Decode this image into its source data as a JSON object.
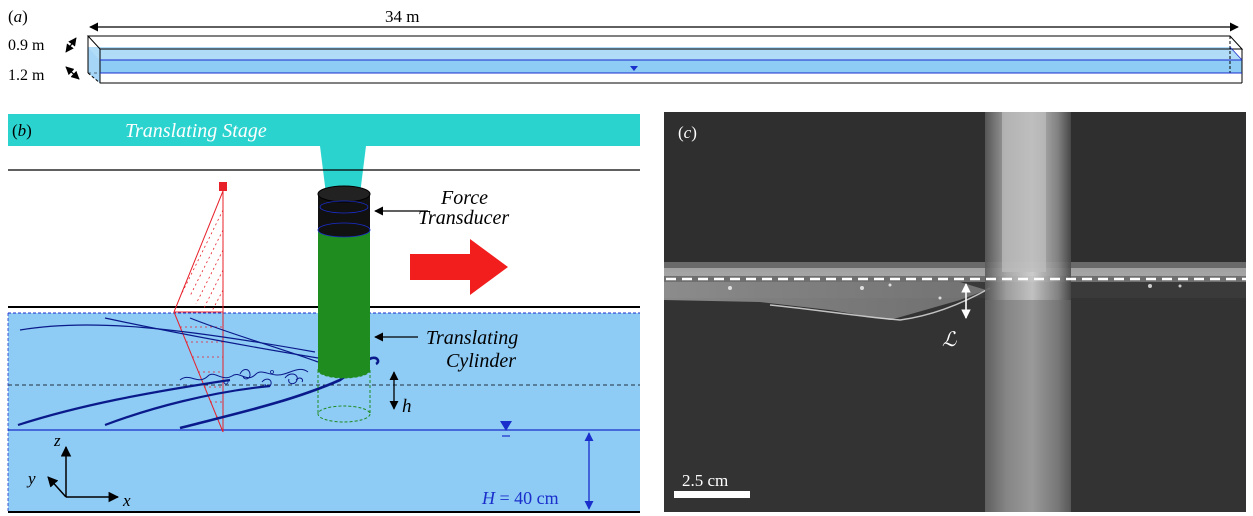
{
  "panel_a": {
    "label_prefix": "(",
    "label_letter": "a",
    "label_suffix": ")",
    "length": "34 m",
    "height_top": "0.9 m",
    "height_bottom": "1.2 m"
  },
  "panel_b": {
    "label_prefix": "(",
    "label_letter": "b",
    "label_suffix": ")",
    "stage": "Translating Stage",
    "force_1": "Force",
    "force_2": "Transducer",
    "cyl_1": "Translating",
    "cyl_2": "Cylinder",
    "h": "h",
    "H_sym": "H",
    "H_val": " = 40 cm",
    "axis_x": "x",
    "axis_y": "y",
    "axis_z": "z"
  },
  "panel_c": {
    "label_prefix": "(",
    "label_letter": "c",
    "label_suffix": ")",
    "L": "ℒ",
    "scale": "2.5 cm"
  },
  "colors": {
    "water": "#8ecbf5",
    "water_dark": "#1a2ecc",
    "stage": "#2bd3cf",
    "cylinder": "#1e8c1e",
    "transducer": "#111111",
    "arrow": "#f21e1e",
    "laser": "#e8202a"
  }
}
